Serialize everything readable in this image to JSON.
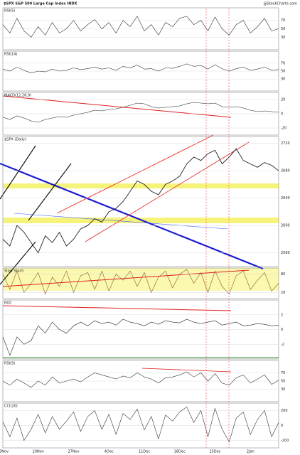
{
  "chart_data": [
    {
      "type": "line",
      "title": "$SPX S&P 500 Large Cap Index INDX",
      "subtitle": "@StockCharts.com",
      "panel_title": "RSI(5)",
      "color": "#333333",
      "ylim": [
        0,
        100
      ],
      "yticks": [
        30,
        50,
        70
      ],
      "values": [
        60,
        40,
        75,
        45,
        30,
        55,
        35,
        65,
        40,
        50,
        70,
        45,
        60,
        72,
        50,
        65,
        40,
        70,
        55,
        80,
        45,
        60,
        35,
        65,
        55,
        75,
        80,
        60,
        70,
        45,
        78,
        50,
        35,
        60,
        70,
        40,
        55,
        75,
        45,
        50
      ]
    },
    {
      "type": "line",
      "panel_title": "RSI(14)",
      "color": "#333333",
      "ylim": [
        0,
        100
      ],
      "yticks": [
        30,
        50,
        70
      ],
      "values": [
        55,
        50,
        60,
        52,
        45,
        50,
        48,
        55,
        50,
        52,
        58,
        54,
        56,
        60,
        55,
        58,
        52,
        62,
        58,
        65,
        55,
        56,
        50,
        58,
        57,
        62,
        68,
        62,
        64,
        55,
        66,
        56,
        50,
        56,
        60,
        52,
        55,
        60,
        52,
        54
      ]
    },
    {
      "type": "line",
      "panel_title": "MACD(12,26,9)",
      "color": "#222222",
      "ylim": [
        -30,
        30
      ],
      "yticks": [
        -20,
        0,
        20
      ],
      "values": [
        -5,
        -8,
        -3,
        -6,
        -10,
        -12,
        -8,
        -6,
        -4,
        -5,
        -2,
        0,
        2,
        5,
        4,
        6,
        7,
        9,
        12,
        15,
        14,
        10,
        8,
        9,
        10,
        11,
        14,
        16,
        15,
        14,
        15,
        10,
        9,
        10,
        8,
        5,
        3,
        4,
        3,
        2
      ]
    },
    {
      "type": "line",
      "panel_title": "$SPX (Daily)",
      "color": "#222222",
      "ylim": [
        2540,
        2730
      ],
      "yticks": [
        2560,
        2600,
        2640,
        2680,
        2720
      ],
      "values": [
        2580,
        2570,
        2600,
        2590,
        2575,
        2560,
        2585,
        2575,
        2590,
        2570,
        2580,
        2595,
        2600,
        2610,
        2605,
        2620,
        2625,
        2635,
        2650,
        2665,
        2660,
        2650,
        2645,
        2660,
        2665,
        2672,
        2690,
        2700,
        2695,
        2705,
        2710,
        2690,
        2700,
        2712,
        2695,
        2690,
        2685,
        2692,
        2688,
        2680
      ]
    },
    {
      "type": "line",
      "panel_title": "Slow Stoch",
      "color": "#8b5a2b",
      "ylim": [
        0,
        100
      ],
      "yticks": [
        20,
        80
      ],
      "values": [
        80,
        30,
        90,
        20,
        50,
        85,
        15,
        70,
        40,
        90,
        20,
        75,
        85,
        30,
        90,
        25,
        80,
        60,
        90,
        40,
        85,
        20,
        70,
        90,
        35,
        80,
        95,
        50,
        85,
        20,
        90,
        40,
        15,
        75,
        90,
        30,
        60,
        85,
        25,
        50
      ]
    },
    {
      "type": "line",
      "panel_title": "ROC",
      "color": "#222222",
      "ylim": [
        -4,
        4
      ],
      "yticks": [
        -2,
        0,
        2
      ],
      "values": [
        -1,
        -3.5,
        -1,
        -2,
        -1.5,
        0.5,
        -0.5,
        1,
        0,
        -0.5,
        0.5,
        1,
        0.5,
        1.2,
        0.8,
        1,
        0.6,
        1.4,
        1,
        0.8,
        0.5,
        1,
        0.7,
        1.2,
        1,
        0.9,
        1.4,
        1,
        0.8,
        1,
        1.2,
        0.6,
        0.8,
        1,
        0.5,
        0.6,
        0.8,
        0.7,
        0.5,
        0.6
      ]
    },
    {
      "type": "line",
      "panel_title": "RSI(9)",
      "color": "#333333",
      "ylim": [
        0,
        100
      ],
      "yticks": [
        30,
        50,
        70
      ],
      "values": [
        50,
        40,
        55,
        45,
        35,
        50,
        40,
        60,
        45,
        50,
        55,
        48,
        60,
        70,
        65,
        60,
        55,
        62,
        58,
        70,
        60,
        55,
        45,
        58,
        60,
        65,
        72,
        60,
        70,
        50,
        68,
        45,
        40,
        58,
        65,
        45,
        55,
        65,
        42,
        52
      ]
    },
    {
      "type": "line",
      "panel_title": "CCI(20)",
      "color": "#333333",
      "ylim": [
        -300,
        300
      ],
      "yticks": [
        -200,
        0,
        200
      ],
      "categories": [
        "13Nov",
        null,
        null,
        null,
        null,
        "20Nov",
        null,
        null,
        null,
        null,
        "27Nov",
        null,
        null,
        null,
        null,
        "4Dec",
        null,
        null,
        null,
        null,
        "11Dec",
        null,
        null,
        null,
        null,
        "18Dec",
        null,
        null,
        null,
        null,
        "25Dec",
        null,
        null,
        null,
        null,
        "2Jan",
        null,
        null,
        null,
        null
      ],
      "values": [
        50,
        -150,
        100,
        -200,
        -50,
        150,
        -100,
        120,
        -50,
        60,
        180,
        -80,
        120,
        200,
        -50,
        150,
        -120,
        160,
        80,
        220,
        -60,
        120,
        -180,
        140,
        60,
        180,
        250,
        40,
        200,
        -150,
        230,
        -50,
        -220,
        100,
        180,
        -120,
        80,
        200,
        -150,
        40
      ]
    }
  ]
}
